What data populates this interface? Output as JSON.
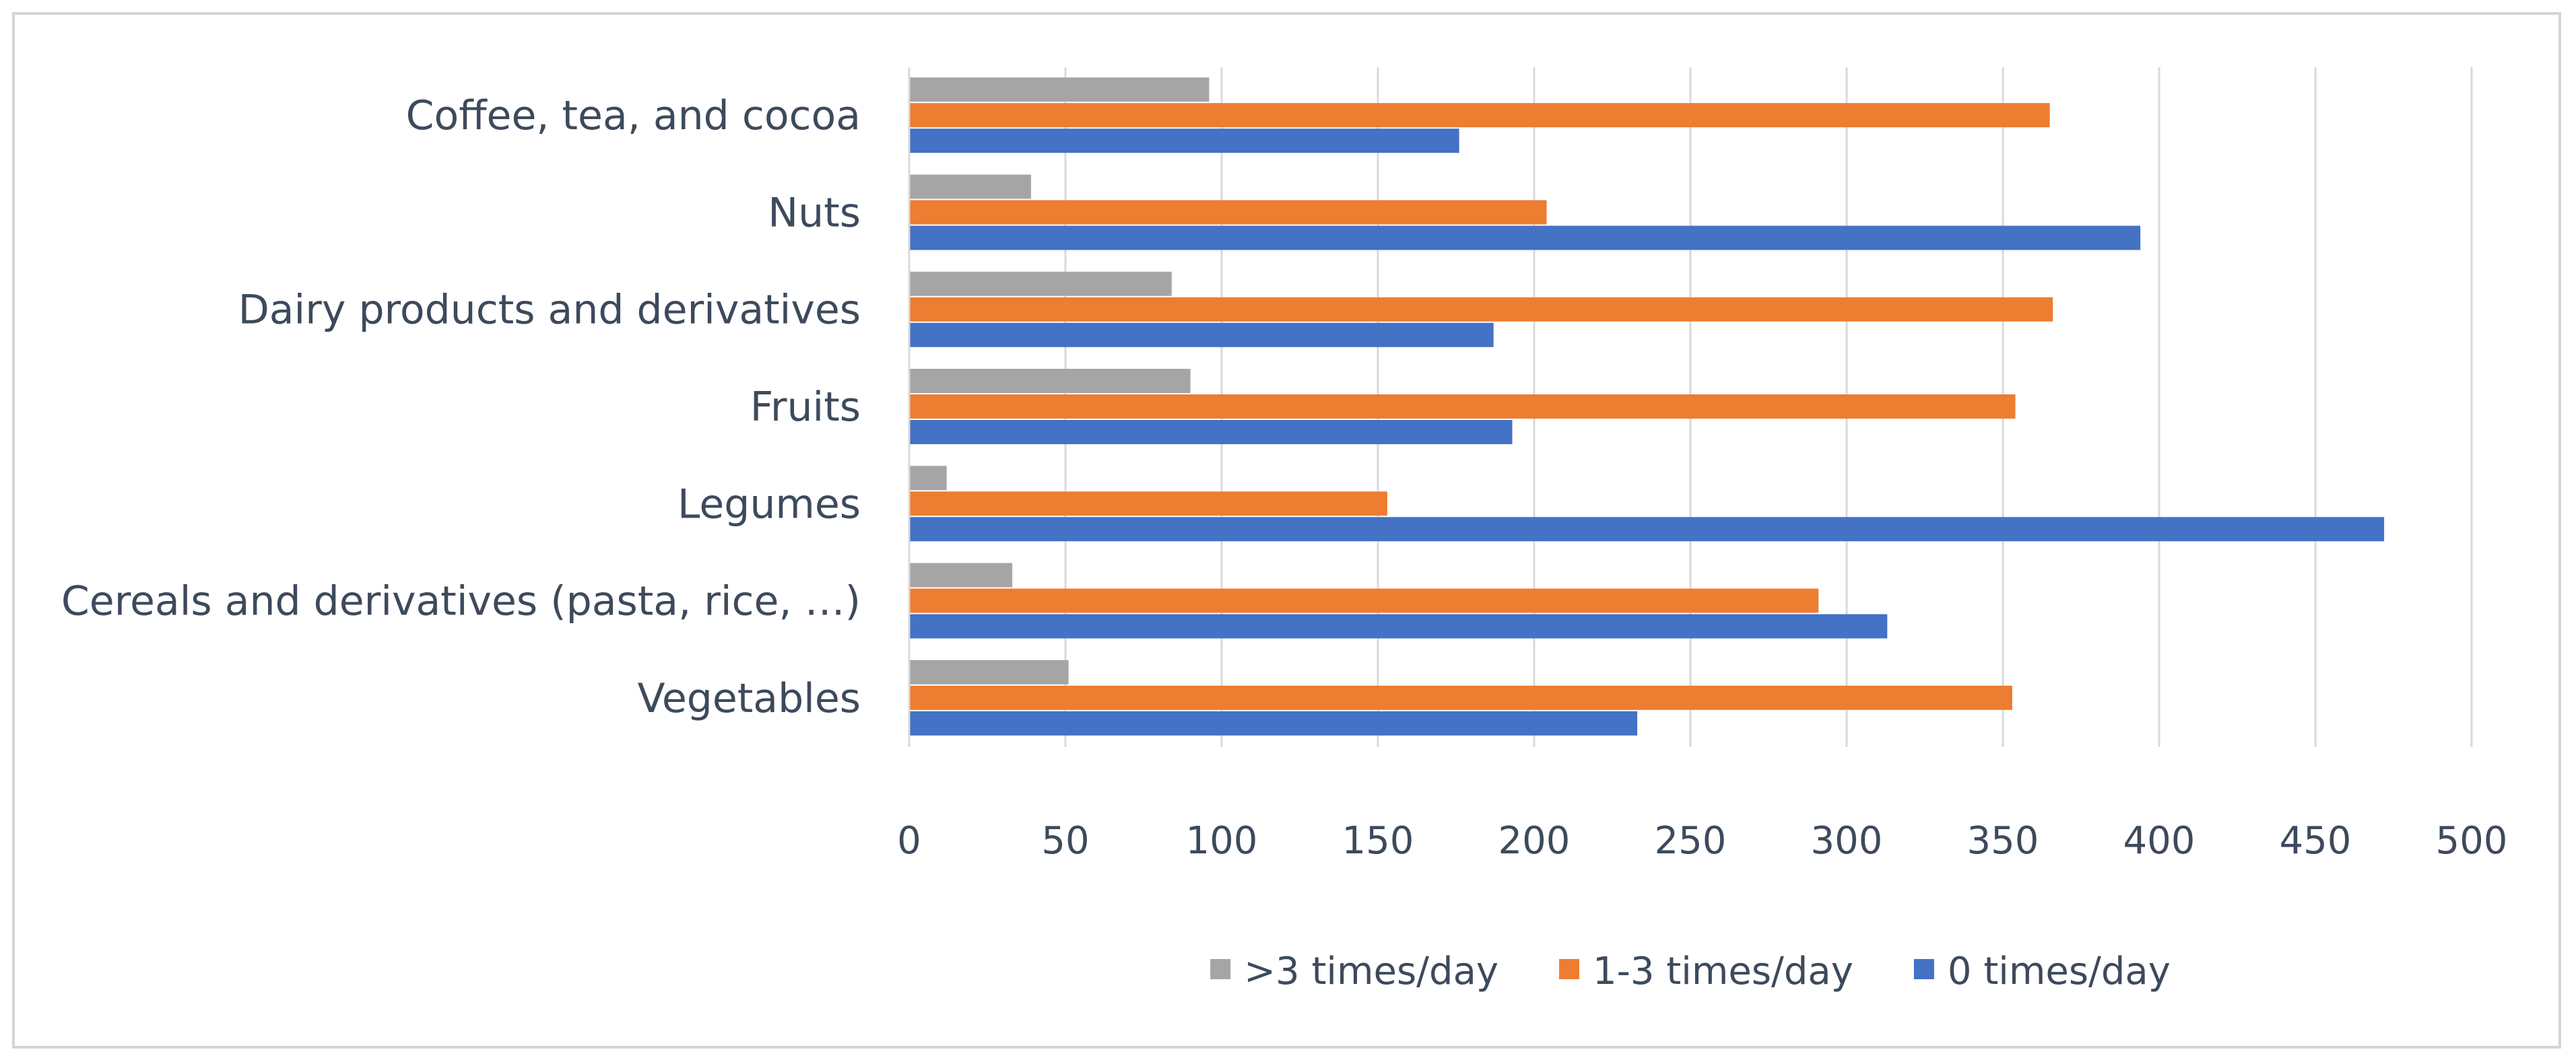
{
  "chart_data": {
    "type": "bar",
    "orientation": "horizontal",
    "categories": [
      "Coffee, tea, and cocoa",
      "Nuts",
      "Dairy products and derivatives",
      "Fruits",
      "Legumes",
      "Cereals and derivatives (pasta, rice, …)",
      "Vegetables"
    ],
    "series": [
      {
        "name": ">3 times/day",
        "color": "#a5a5a5",
        "values": [
          96,
          39,
          84,
          90,
          12,
          33,
          51
        ]
      },
      {
        "name": "1-3 times/day",
        "color": "#ed7d31",
        "values": [
          365,
          204,
          366,
          354,
          153,
          291,
          353
        ]
      },
      {
        "name": "0 times/day",
        "color": "#4472c4",
        "values": [
          176,
          394,
          187,
          193,
          472,
          313,
          233
        ]
      }
    ],
    "xlim": [
      0,
      500
    ],
    "xticks": [
      0,
      50,
      100,
      150,
      200,
      250,
      300,
      350,
      400,
      450,
      500
    ],
    "grid": "vertical",
    "legend_position": "bottom",
    "title": "",
    "xlabel": "",
    "ylabel": ""
  }
}
